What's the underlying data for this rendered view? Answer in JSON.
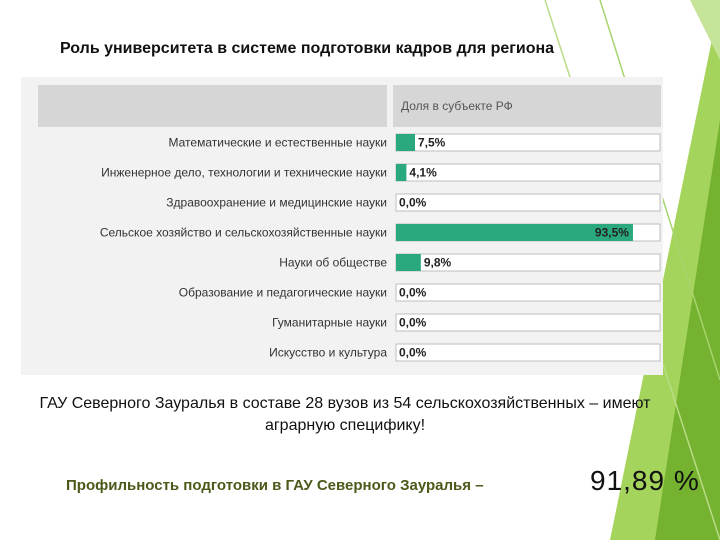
{
  "slide": {
    "title": "Роль университета в системе подготовки кадров для региона",
    "description": "ГАУ Северного Зауралья в составе 28 вузов из 54 сельскохозяйственных – имеют аграрную специфику!",
    "highlight_label": "Профильность подготовки в ГАУ Северного Зауралья –",
    "highlight_value": "91,89 %",
    "colors": {
      "accent_green": "#8dc63f",
      "bar": "#2aa87e",
      "panel": "#f2f2f2"
    }
  },
  "chart_data": {
    "type": "bar",
    "orientation": "horizontal",
    "title": "",
    "xlabel": "",
    "ylabel": "",
    "header_label": "Доля в субъекте РФ",
    "xlim": [
      0,
      100
    ],
    "categories": [
      "Математические и естественные науки",
      "Инженерное дело, технологии и технические науки",
      "Здравоохранение и медицинские науки",
      "Сельское хозяйство и сельскохозяйственные науки",
      "Науки об обществе",
      "Образование и педагогические науки",
      "Гуманитарные науки",
      "Искусство и культура"
    ],
    "values": [
      7.5,
      4.1,
      0.0,
      93.5,
      9.8,
      0.0,
      0.0,
      0.0
    ],
    "value_labels": [
      "7,5%",
      "4,1%",
      "0,0%",
      "93,5%",
      "9,8%",
      "0,0%",
      "0,0%",
      "0,0%"
    ]
  }
}
